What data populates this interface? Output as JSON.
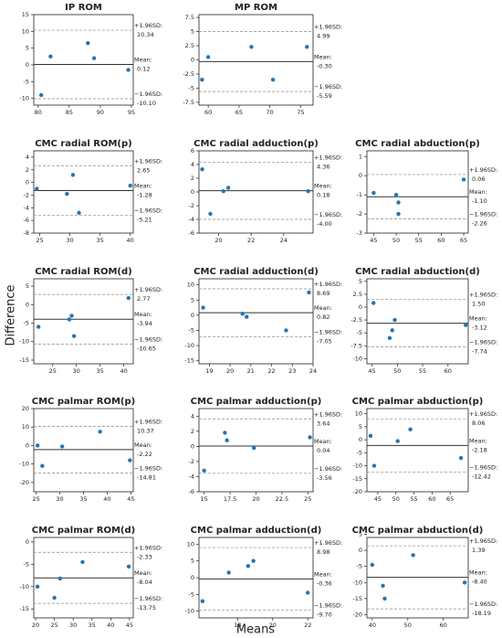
{
  "figure": {
    "xlabel": "Means",
    "ylabel": "Difference"
  },
  "chart_data": [
    {
      "type": "scatter",
      "title": "IP ROM",
      "color": "#1f77b4",
      "x": [
        80.5,
        82,
        88,
        89,
        94.5
      ],
      "values": [
        -9,
        2.5,
        6.5,
        2,
        -1.5
      ],
      "xlim": [
        79.3,
        95.3
      ],
      "xticks": [
        80,
        85,
        90,
        95
      ],
      "ylim": [
        -12,
        15
      ],
      "yticks": [
        -10,
        -5,
        0,
        5,
        10,
        15
      ],
      "ref_lines": [
        {
          "name": "+1.96SD:",
          "value": 10.34,
          "value_label": "10.34"
        },
        {
          "name": "Mean:",
          "value": 0.12,
          "value_label": "0.12"
        },
        {
          "name": "−1.96SD:",
          "value": -10.1,
          "value_label": "-10.10"
        }
      ]
    },
    {
      "type": "scatter",
      "title": "MP ROM",
      "color": "#1f77b4",
      "x": [
        59,
        60,
        67,
        70.5,
        76
      ],
      "values": [
        -3.5,
        0.5,
        2.3,
        -3.5,
        2.3
      ],
      "xlim": [
        58.5,
        77
      ],
      "xticks": [
        60,
        65,
        70,
        75
      ],
      "ylim": [
        -8,
        8
      ],
      "yticks": [
        -7.5,
        -5,
        -2.5,
        0,
        2.5,
        5,
        7.5
      ],
      "ref_lines": [
        {
          "name": "+1.96SD:",
          "value": 4.99,
          "value_label": "4.99"
        },
        {
          "name": "Mean:",
          "value": -0.3,
          "value_label": "-0.30"
        },
        {
          "name": "−1.96SD:",
          "value": -5.59,
          "value_label": "-5.59"
        }
      ]
    },
    {
      "type": "scatter",
      "title": "CMC radial ROM(p)",
      "color": "#1f77b4",
      "x": [
        24.5,
        29.5,
        30.5,
        31.5,
        40
      ],
      "values": [
        -1,
        -1.8,
        1.2,
        -4.8,
        -0.5
      ],
      "xlim": [
        24,
        40.5
      ],
      "xticks": [
        25,
        30,
        35,
        40
      ],
      "ylim": [
        -8,
        5
      ],
      "yticks": [
        -8,
        -6,
        -4,
        -2,
        0,
        2,
        4
      ],
      "ref_lines": [
        {
          "name": "+1.96SD:",
          "value": 2.65,
          "value_label": "2.65"
        },
        {
          "name": "Mean:",
          "value": -1.28,
          "value_label": "-1.28"
        },
        {
          "name": "−1.96SD:",
          "value": -5.21,
          "value_label": "-5.21"
        }
      ]
    },
    {
      "type": "scatter",
      "title": "CMC radial adduction(p)",
      "color": "#1f77b4",
      "x": [
        19,
        19.5,
        20.3,
        20.6,
        25.5
      ],
      "values": [
        3.3,
        -3.2,
        0.1,
        0.6,
        0.1
      ],
      "xlim": [
        18.8,
        25.8
      ],
      "xticks": [
        20,
        22,
        24
      ],
      "ylim": [
        -6,
        6
      ],
      "yticks": [
        -6,
        -4,
        -2,
        0,
        2,
        4,
        6
      ],
      "ref_lines": [
        {
          "name": "+1.96SD:",
          "value": 4.36,
          "value_label": "4.36"
        },
        {
          "name": "Mean:",
          "value": 0.18,
          "value_label": "0.18"
        },
        {
          "name": "−1.96SD:",
          "value": -4.0,
          "value_label": "-4.00"
        }
      ]
    },
    {
      "type": "scatter",
      "title": "CMC radial abduction(p)",
      "color": "#1f77b4",
      "x": [
        45,
        50,
        50.5,
        50.5,
        65
      ],
      "values": [
        -0.9,
        -1,
        -1.4,
        -2,
        -0.2
      ],
      "xlim": [
        43.5,
        66
      ],
      "xticks": [
        45,
        50,
        55,
        60,
        65
      ],
      "ylim": [
        -3,
        1.3
      ],
      "yticks": [
        -3,
        -2,
        -1,
        0,
        1
      ],
      "ref_lines": [
        {
          "name": "+1.96SD:",
          "value": 0.06,
          "value_label": "0.06"
        },
        {
          "name": "Mean:",
          "value": -1.1,
          "value_label": "-1.10"
        },
        {
          "name": "−1.96SD:",
          "value": -2.26,
          "value_label": "-2.26"
        }
      ]
    },
    {
      "type": "scatter",
      "title": "CMC radial ROM(d)",
      "color": "#1f77b4",
      "x": [
        22,
        28.5,
        29,
        29.5,
        41
      ],
      "values": [
        -6,
        -4,
        -3,
        -8.5,
        1.8
      ],
      "xlim": [
        21,
        42
      ],
      "xticks": [
        25,
        30,
        35,
        40
      ],
      "ylim": [
        -16,
        7
      ],
      "yticks": [
        -15,
        -10,
        -5,
        0,
        5
      ],
      "ref_lines": [
        {
          "name": "+1.96SD:",
          "value": 2.77,
          "value_label": "2.77"
        },
        {
          "name": "Mean:",
          "value": -3.94,
          "value_label": "-3.94"
        },
        {
          "name": "−1.96SD:",
          "value": -10.65,
          "value_label": "-10.65"
        }
      ]
    },
    {
      "type": "scatter",
      "title": "CMC radial adduction(d)",
      "color": "#1f77b4",
      "x": [
        18.7,
        20.6,
        20.8,
        22.7,
        23.8
      ],
      "values": [
        2.5,
        0.5,
        -0.5,
        -5,
        7.5
      ],
      "xlim": [
        18.5,
        24
      ],
      "xticks": [
        19,
        20,
        21,
        22,
        23,
        24
      ],
      "ylim": [
        -16,
        12
      ],
      "yticks": [
        -15,
        -10,
        -5,
        0,
        5,
        10
      ],
      "ref_lines": [
        {
          "name": "+1.96SD:",
          "value": 8.69,
          "value_label": "8.69"
        },
        {
          "name": "Mean:",
          "value": 0.82,
          "value_label": "0.82"
        },
        {
          "name": "−1.96SD:",
          "value": -7.05,
          "value_label": "-7.05"
        }
      ]
    },
    {
      "type": "scatter",
      "title": "CMC radial abduction(d)",
      "color": "#1f77b4",
      "x": [
        45.3,
        48.5,
        49,
        49.5,
        63.5
      ],
      "values": [
        0.8,
        -6,
        -4.5,
        -2.5,
        -3.5
      ],
      "xlim": [
        44,
        64
      ],
      "xticks": [
        45,
        50,
        55,
        60
      ],
      "ylim": [
        -11,
        5.5
      ],
      "yticks": [
        -10,
        -7.5,
        -5,
        -2.5,
        0,
        2.5,
        5
      ],
      "ref_lines": [
        {
          "name": "+1.96SD:",
          "value": 1.5,
          "value_label": "1.50"
        },
        {
          "name": "Mean:",
          "value": -3.12,
          "value_label": "-3.12"
        },
        {
          "name": "−1.96SD:",
          "value": -7.74,
          "value_label": "-7.74"
        }
      ]
    },
    {
      "type": "scatter",
      "title": "CMC palmar ROM(p)",
      "color": "#1f77b4",
      "x": [
        25.3,
        26.3,
        30.5,
        38.5,
        44.8
      ],
      "values": [
        0,
        -11,
        -0.5,
        7.5,
        -8
      ],
      "xlim": [
        24.5,
        45.5
      ],
      "xticks": [
        25,
        30,
        35,
        40,
        45
      ],
      "ylim": [
        -25,
        20
      ],
      "yticks": [
        -20,
        -10,
        0,
        10,
        20
      ],
      "ref_lines": [
        {
          "name": "+1.96SD:",
          "value": 10.37,
          "value_label": "10.37"
        },
        {
          "name": "Mean:",
          "value": -2.22,
          "value_label": "-2.22"
        },
        {
          "name": "−1.96SD:",
          "value": -14.81,
          "value_label": "-14.81"
        }
      ]
    },
    {
      "type": "scatter",
      "title": "CMC palmar adduction(p)",
      "color": "#1f77b4",
      "x": [
        15,
        17,
        17.2,
        19.8,
        25.2
      ],
      "values": [
        -3.2,
        1.8,
        0.8,
        -0.2,
        1.2
      ],
      "xlim": [
        14.5,
        25.5
      ],
      "xticks": [
        15,
        17.5,
        20,
        22.5,
        25
      ],
      "ylim": [
        -6,
        5
      ],
      "yticks": [
        -6,
        -4,
        -2,
        0,
        2,
        4
      ],
      "ref_lines": [
        {
          "name": "+1.96SD:",
          "value": 3.64,
          "value_label": "3.64"
        },
        {
          "name": "Mean:",
          "value": 0.04,
          "value_label": "0.04"
        },
        {
          "name": "−1.96SD:",
          "value": -3.56,
          "value_label": "-3.56"
        }
      ]
    },
    {
      "type": "scatter",
      "title": "CMC palmar abduction(p)",
      "color": "#1f77b4",
      "x": [
        43,
        44,
        50.5,
        54,
        68
      ],
      "values": [
        1.5,
        -10,
        -0.5,
        4,
        -7
      ],
      "xlim": [
        42,
        70
      ],
      "xticks": [
        45,
        50,
        55,
        60,
        65
      ],
      "ylim": [
        -20,
        12
      ],
      "yticks": [
        -20,
        -15,
        -10,
        -5,
        0,
        5,
        10
      ],
      "ref_lines": [
        {
          "name": "+1.96SD:",
          "value": 8.06,
          "value_label": "8.06"
        },
        {
          "name": "Mean:",
          "value": -2.18,
          "value_label": "-2.18"
        },
        {
          "name": "−1.96SD:",
          "value": -12.42,
          "value_label": "-12.42"
        }
      ]
    },
    {
      "type": "scatter",
      "title": "CMC palmar ROM(d)",
      "color": "#1f77b4",
      "x": [
        20.5,
        25,
        26.5,
        32.5,
        44.8
      ],
      "values": [
        -10,
        -12.5,
        -8.2,
        -4.5,
        -5.5
      ],
      "xlim": [
        19.5,
        46
      ],
      "xticks": [
        20,
        25,
        30,
        35,
        40,
        45
      ],
      "ylim": [
        -17,
        1
      ],
      "yticks": [
        -15,
        -10,
        -5,
        0
      ],
      "ref_lines": [
        {
          "name": "+1.96SD:",
          "value": -2.33,
          "value_label": "-2.33"
        },
        {
          "name": "Mean:",
          "value": -8.04,
          "value_label": "-8.04"
        },
        {
          "name": "−1.96SD:",
          "value": -13.75,
          "value_label": "-13.75"
        }
      ]
    },
    {
      "type": "scatter",
      "title": "CMC palmar adduction(d)",
      "color": "#1f77b4",
      "x": [
        16,
        17.5,
        18.6,
        18.9,
        22
      ],
      "values": [
        -7,
        1.5,
        3.5,
        5,
        -4.5
      ],
      "xlim": [
        15.8,
        22.3
      ],
      "xticks": [
        18,
        20,
        22
      ],
      "ylim": [
        -12,
        12
      ],
      "yticks": [
        -10,
        -5,
        0,
        5,
        10
      ],
      "ref_lines": [
        {
          "name": "+1.96SD:",
          "value": 8.98,
          "value_label": "8.98"
        },
        {
          "name": "Mean:",
          "value": -0.36,
          "value_label": "-0.36"
        },
        {
          "name": "−1.96SD:",
          "value": -9.7,
          "value_label": "-9.70"
        }
      ]
    },
    {
      "type": "scatter",
      "title": "CMC palmar abduction(d)",
      "color": "#1f77b4",
      "x": [
        40,
        43,
        43.5,
        51.5,
        66
      ],
      "values": [
        -4.5,
        -11,
        -15,
        -1.5,
        -10
      ],
      "xlim": [
        38.5,
        67
      ],
      "xticks": [
        40,
        50,
        60
      ],
      "ylim": [
        -21,
        4
      ],
      "yticks": [
        -20,
        -15,
        -10,
        -5,
        0,
        5
      ],
      "ref_lines": [
        {
          "name": "+1.96SD:",
          "value": 1.39,
          "value_label": "1.39"
        },
        {
          "name": "Mean:",
          "value": -8.4,
          "value_label": "-8.40"
        },
        {
          "name": "−1.96SD:",
          "value": -18.19,
          "value_label": "-18.19"
        }
      ]
    }
  ]
}
